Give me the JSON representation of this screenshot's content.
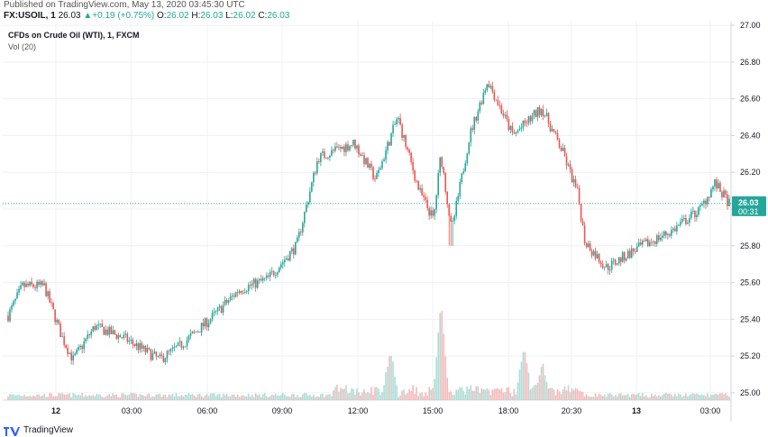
{
  "header": {
    "published": "Published on TradingView.com, May 13, 2020 03:45:30 UTC",
    "symbol": "FX:USOIL, 1",
    "last": "26.03",
    "change_arrow": "▲",
    "change": "+0.19 (+0.75%)",
    "o_label": "O:",
    "o_value": "26.02",
    "h_label": "H:",
    "h_value": "26.03",
    "l_label": "L:",
    "l_value": "26.02",
    "c_label": "C:",
    "c_value": "26.03"
  },
  "legend": {
    "title": "CFDs on Crude Oil (WTI), 1, FXCM",
    "volume": "Vol (20)"
  },
  "footer": {
    "brand": "TradingView",
    "logo_icon": "tradingview-logo-icon"
  },
  "chart_data": {
    "type": "candlestick",
    "title": "CFDs on Crude Oil (WTI), 1, FXCM",
    "interval": "1 minute",
    "y_ticks": [
      27.0,
      26.8,
      26.6,
      26.4,
      26.2,
      26.0,
      25.8,
      25.6,
      25.4,
      25.2,
      25.0
    ],
    "y_tick_labels": [
      "27.00",
      "26.80",
      "26.60",
      "26.40",
      "26.20",
      "26.00",
      "25.80",
      "25.60",
      "25.40",
      "25.20",
      "25.00"
    ],
    "ylim": [
      24.98,
      27.02
    ],
    "x_ticks": [
      "12",
      "03:00",
      "06:00",
      "09:00",
      "12:00",
      "15:00",
      "18:00",
      "20:30",
      "13",
      "03:00"
    ],
    "x_ticks_bold": [
      "12",
      "13"
    ],
    "last_price": 26.03,
    "last_price_label": "26.03",
    "countdown_label": "00:31",
    "colors": {
      "up": "#26a69a",
      "down": "#ef5350",
      "vol_up": "#a8d8d2",
      "vol_down": "#f5b3b2",
      "grid": "#eef0f3",
      "price_line": "#26a69a"
    },
    "grid": true,
    "price_path_approx": [
      {
        "t": 0,
        "price": 25.42
      },
      {
        "t": 0.02,
        "price": 25.58
      },
      {
        "t": 0.05,
        "price": 25.58
      },
      {
        "t": 0.075,
        "price": 25.3
      },
      {
        "t": 0.09,
        "price": 25.18
      },
      {
        "t": 0.12,
        "price": 25.36
      },
      {
        "t": 0.16,
        "price": 25.3
      },
      {
        "t": 0.21,
        "price": 25.18
      },
      {
        "t": 0.24,
        "price": 25.26
      },
      {
        "t": 0.28,
        "price": 25.4
      },
      {
        "t": 0.32,
        "price": 25.56
      },
      {
        "t": 0.36,
        "price": 25.62
      },
      {
        "t": 0.4,
        "price": 25.8
      },
      {
        "t": 0.43,
        "price": 26.28
      },
      {
        "t": 0.48,
        "price": 26.36
      },
      {
        "t": 0.51,
        "price": 26.16
      },
      {
        "t": 0.54,
        "price": 26.5
      },
      {
        "t": 0.57,
        "price": 26.1
      },
      {
        "t": 0.59,
        "price": 25.94
      },
      {
        "t": 0.6,
        "price": 26.3
      },
      {
        "t": 0.615,
        "price": 25.88
      },
      {
        "t": 0.64,
        "price": 26.4
      },
      {
        "t": 0.665,
        "price": 26.7
      },
      {
        "t": 0.7,
        "price": 26.4
      },
      {
        "t": 0.74,
        "price": 26.55
      },
      {
        "t": 0.77,
        "price": 26.3
      },
      {
        "t": 0.79,
        "price": 26.08
      },
      {
        "t": 0.8,
        "price": 25.82
      },
      {
        "t": 0.83,
        "price": 25.68
      },
      {
        "t": 0.87,
        "price": 25.78
      },
      {
        "t": 0.92,
        "price": 25.88
      },
      {
        "t": 0.96,
        "price": 26.0
      },
      {
        "t": 0.98,
        "price": 26.14
      },
      {
        "t": 1.0,
        "price": 26.03
      }
    ],
    "volume_spikes_approx": [
      {
        "t": 0.6,
        "level": 1.0
      },
      {
        "t": 0.53,
        "level": 0.45
      },
      {
        "t": 0.715,
        "level": 0.5
      },
      {
        "t": 0.74,
        "level": 0.3
      }
    ]
  }
}
